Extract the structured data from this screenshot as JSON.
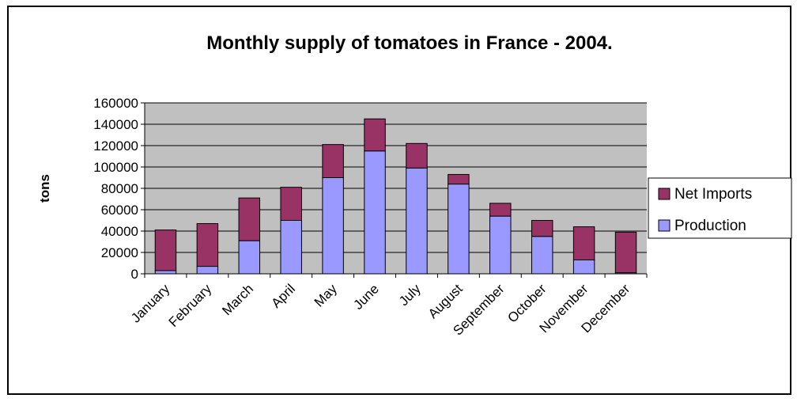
{
  "chart_data": {
    "type": "stacked_bar",
    "title": "Monthly supply of tomatoes in France - 2004.",
    "y_label": "tons",
    "categories": [
      "January",
      "February",
      "March",
      "April",
      "May",
      "June",
      "July",
      "August",
      "September",
      "October",
      "November",
      "December"
    ],
    "series": [
      {
        "name": "Production",
        "color": "#9999ff",
        "values": [
          3000,
          7000,
          31000,
          50000,
          90000,
          115000,
          99000,
          84000,
          54000,
          35000,
          13000,
          1000
        ]
      },
      {
        "name": "Net Imports",
        "color": "#993366",
        "values": [
          38000,
          40000,
          40000,
          31000,
          31000,
          30000,
          23000,
          9000,
          12000,
          15000,
          31000,
          38000
        ]
      }
    ],
    "ylim": [
      0,
      160000
    ],
    "yticks": [
      0,
      20000,
      40000,
      60000,
      80000,
      100000,
      120000,
      140000,
      160000
    ],
    "grid": true,
    "legend": "right"
  }
}
